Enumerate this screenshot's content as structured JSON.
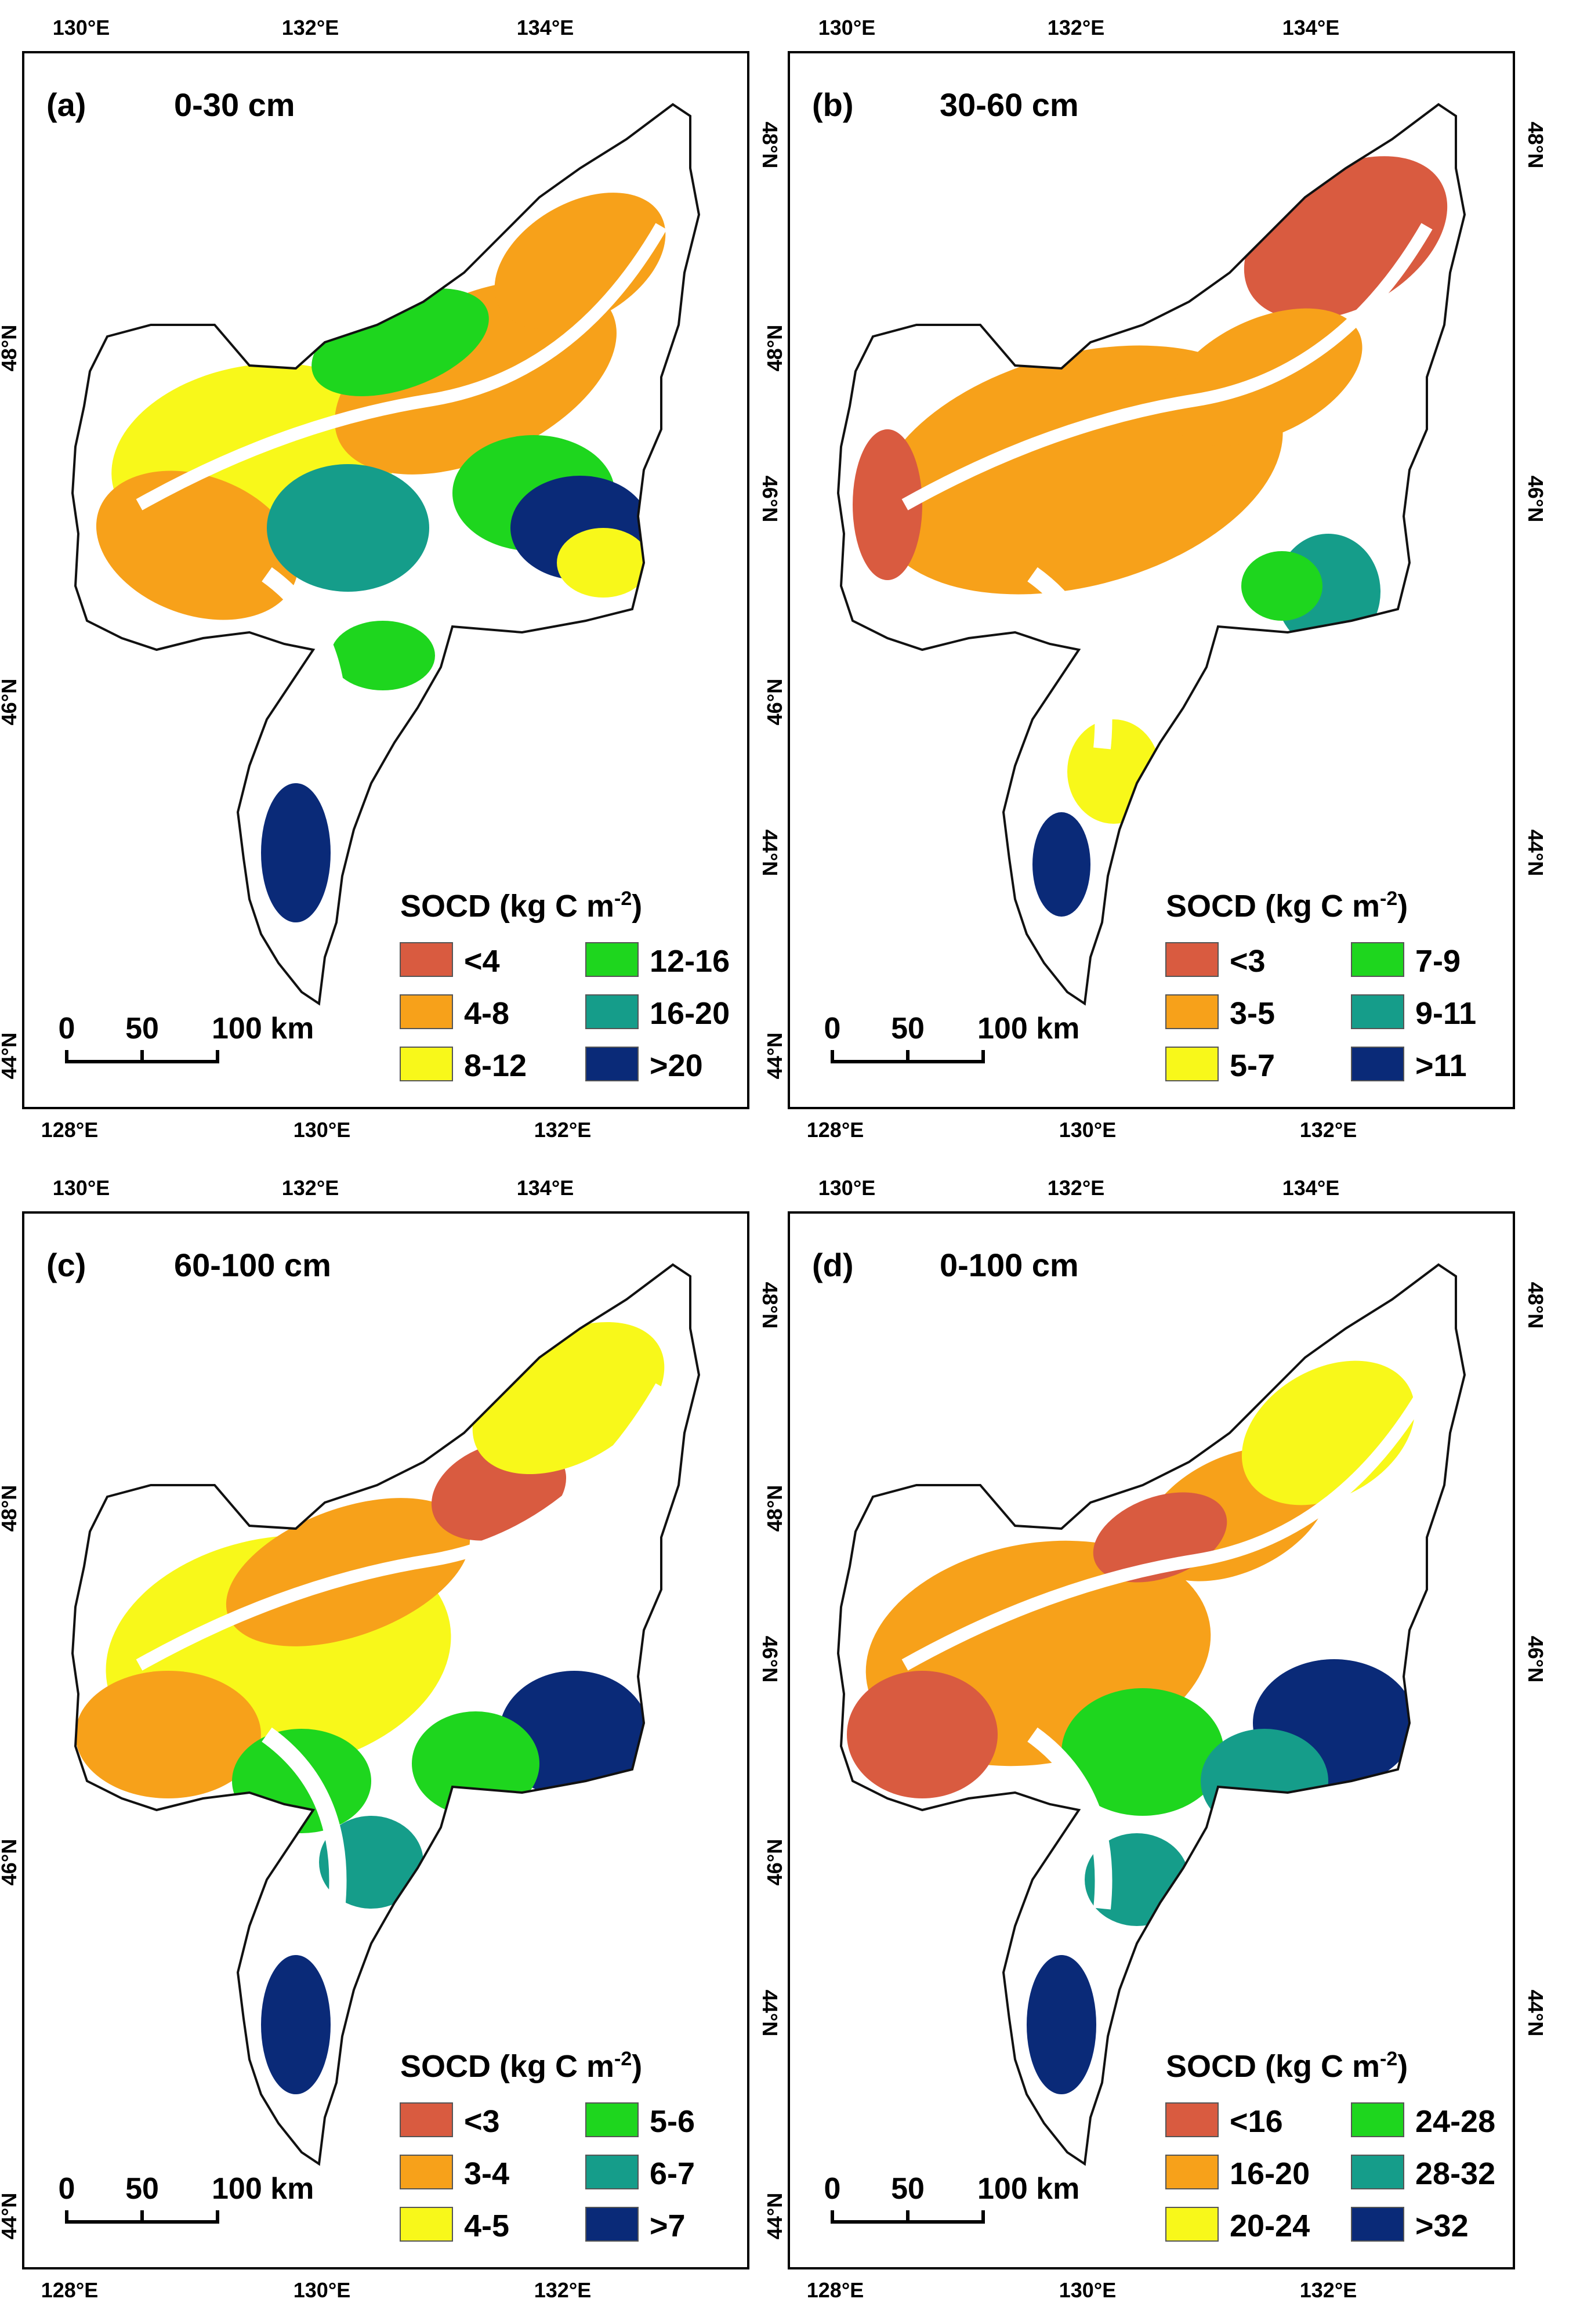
{
  "figure": {
    "panels": [
      {
        "id": "a",
        "label": "(a)",
        "depth": "0-30 cm",
        "top_ticks": [
          "130°E",
          "132°E",
          "134°E"
        ],
        "bottom_ticks": [
          "128°E",
          "130°E",
          "132°E"
        ],
        "left_ticks": [
          "48°N",
          "46°N",
          "44°N"
        ],
        "right_ticks": [
          "48°N",
          "46°N",
          "44°N"
        ],
        "legend": {
          "title": "SOCD (kg C m",
          "title_sup": "-2",
          "title_close": ")",
          "classes": [
            {
              "label": "<4",
              "color": "#d95b40"
            },
            {
              "label": "4-8",
              "color": "#f7a11a"
            },
            {
              "label": "8-12",
              "color": "#f8f81a"
            },
            {
              "label": "12-16",
              "color": "#1ed61e"
            },
            {
              "label": "16-20",
              "color": "#159d8a"
            },
            {
              "label": ">20",
              "color": "#0a2a78"
            }
          ]
        },
        "scale": {
          "labels": [
            "0",
            "50",
            "100 km"
          ]
        }
      },
      {
        "id": "b",
        "label": "(b)",
        "depth": "30-60 cm",
        "top_ticks": [
          "130°E",
          "132°E",
          "134°E"
        ],
        "bottom_ticks": [
          "128°E",
          "130°E",
          "132°E"
        ],
        "left_ticks": [
          "48°N",
          "46°N",
          "44°N"
        ],
        "right_ticks": [
          "48°N",
          "46°N",
          "44°N"
        ],
        "legend": {
          "title": "SOCD (kg C m",
          "title_sup": "-2",
          "title_close": ")",
          "classes": [
            {
              "label": "<3",
              "color": "#d95b40"
            },
            {
              "label": "3-5",
              "color": "#f7a11a"
            },
            {
              "label": "5-7",
              "color": "#f8f81a"
            },
            {
              "label": "7-9",
              "color": "#1ed61e"
            },
            {
              "label": "9-11",
              "color": "#159d8a"
            },
            {
              "label": ">11",
              "color": "#0a2a78"
            }
          ]
        },
        "scale": {
          "labels": [
            "0",
            "50",
            "100 km"
          ]
        }
      },
      {
        "id": "c",
        "label": "(c)",
        "depth": "60-100 cm",
        "top_ticks": [
          "130°E",
          "132°E",
          "134°E"
        ],
        "bottom_ticks": [
          "128°E",
          "130°E",
          "132°E"
        ],
        "left_ticks": [
          "48°N",
          "46°N",
          "44°N"
        ],
        "right_ticks": [
          "48°N",
          "46°N",
          "44°N"
        ],
        "legend": {
          "title": "SOCD (kg C m",
          "title_sup": "-2",
          "title_close": ")",
          "classes": [
            {
              "label": "<3",
              "color": "#d95b40"
            },
            {
              "label": "3-4",
              "color": "#f7a11a"
            },
            {
              "label": "4-5",
              "color": "#f8f81a"
            },
            {
              "label": "5-6",
              "color": "#1ed61e"
            },
            {
              "label": "6-7",
              "color": "#159d8a"
            },
            {
              "label": ">7",
              "color": "#0a2a78"
            }
          ]
        },
        "scale": {
          "labels": [
            "0",
            "50",
            "100 km"
          ]
        }
      },
      {
        "id": "d",
        "label": "(d)",
        "depth": "0-100 cm",
        "top_ticks": [
          "130°E",
          "132°E",
          "134°E"
        ],
        "bottom_ticks": [
          "128°E",
          "130°E",
          "132°E"
        ],
        "left_ticks": [
          "48°N",
          "46°N",
          "44°N"
        ],
        "right_ticks": [
          "48°N",
          "46°N",
          "44°N"
        ],
        "legend": {
          "title": "SOCD (kg C m",
          "title_sup": "-2",
          "title_close": ")",
          "classes": [
            {
              "label": "<16",
              "color": "#d95b40"
            },
            {
              "label": "16-20",
              "color": "#f7a11a"
            },
            {
              "label": "20-24",
              "color": "#f8f81a"
            },
            {
              "label": "24-28",
              "color": "#1ed61e"
            },
            {
              "label": "28-32",
              "color": "#159d8a"
            },
            {
              "label": ">32",
              "color": "#0a2a78"
            }
          ]
        },
        "scale": {
          "labels": [
            "0",
            "50",
            "100 km"
          ]
        }
      }
    ]
  }
}
